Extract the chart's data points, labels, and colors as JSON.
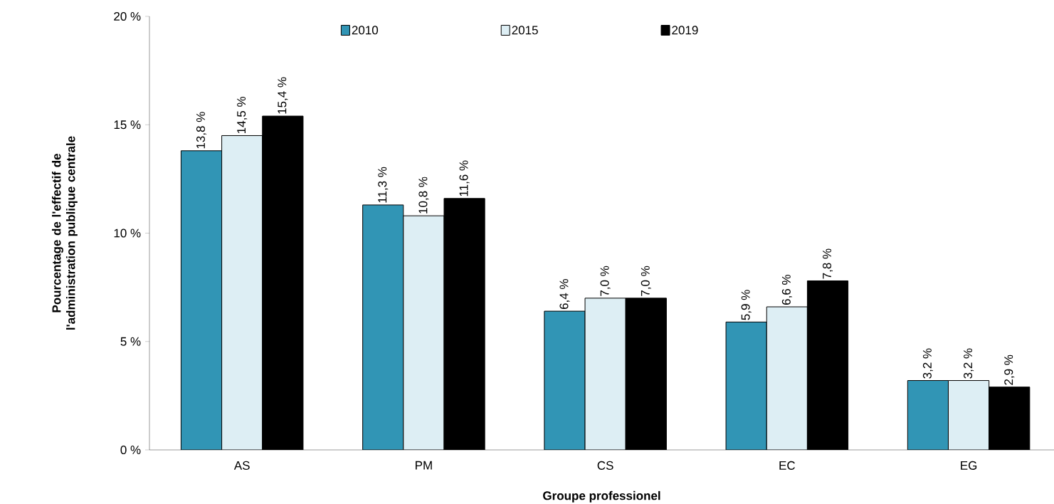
{
  "chart_data": {
    "type": "bar",
    "xlabel": "Groupe professionel",
    "ylabel": "Pourcentage de l'effectif de l'administration publique centrale",
    "categories": [
      "AS",
      "PM",
      "CS",
      "EC",
      "EG"
    ],
    "series": [
      {
        "name": "2010",
        "color": "#3195b5",
        "values": [
          13.8,
          11.3,
          6.4,
          5.9,
          3.2
        ],
        "value_labels": [
          "13,8 %",
          "11,3 %",
          "6,4 %",
          "5,9 %",
          "3,2 %"
        ]
      },
      {
        "name": "2015",
        "color": "#ddeef4",
        "values": [
          14.5,
          10.8,
          7.0,
          6.6,
          3.2
        ],
        "value_labels": [
          "14,5 %",
          "10,8 %",
          "7,0 %",
          "6,6 %",
          "3,2 %"
        ]
      },
      {
        "name": "2019",
        "color": "#000000",
        "values": [
          15.4,
          11.6,
          7.0,
          7.8,
          2.9
        ],
        "value_labels": [
          "15,4 %",
          "11,6 %",
          "7,0 %",
          "7,8 %",
          "2,9 %"
        ]
      }
    ],
    "ylim": [
      0,
      20
    ],
    "yticks": [
      {
        "value": 0,
        "label": "0 %"
      },
      {
        "value": 5,
        "label": "5 %"
      },
      {
        "value": 10,
        "label": "10 %"
      },
      {
        "value": 15,
        "label": "15 %"
      },
      {
        "value": 20,
        "label": "20 %"
      }
    ],
    "legend": "top"
  }
}
